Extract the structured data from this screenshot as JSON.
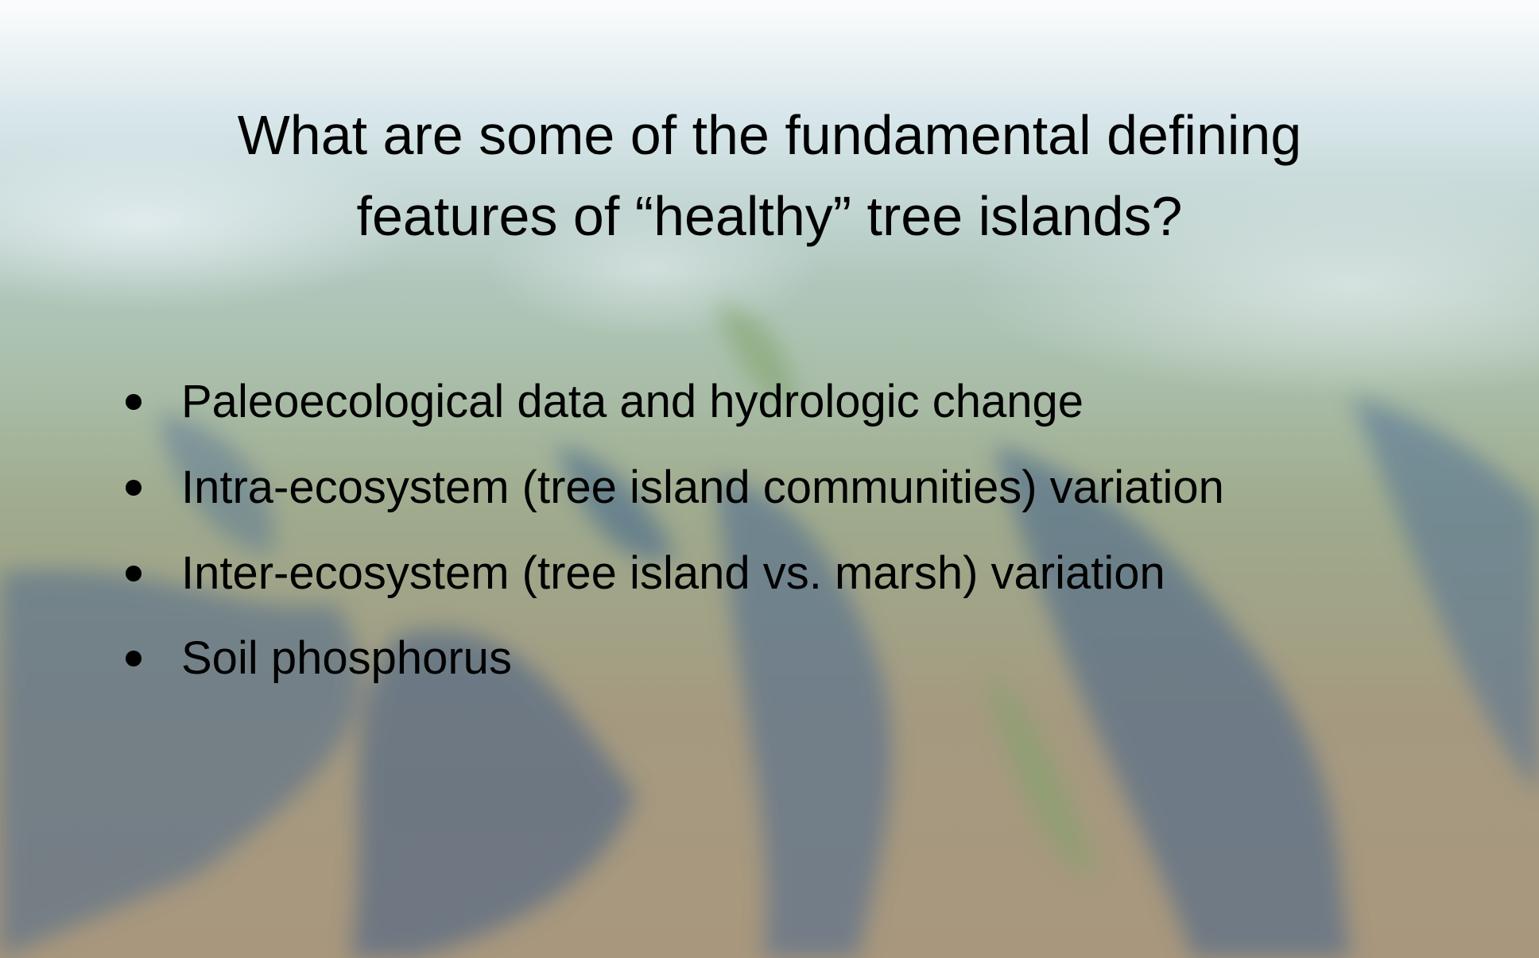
{
  "title": {
    "lines": [
      "What are some of the fundamental defining",
      "features of “healthy” tree islands?"
    ]
  },
  "bullets": [
    "Paleoecological data and hydrologic change",
    "Intra-ecosystem (tree island communities) variation",
    "Inter-ecosystem (tree island vs. marsh) variation",
    "Soil phosphorus"
  ]
}
